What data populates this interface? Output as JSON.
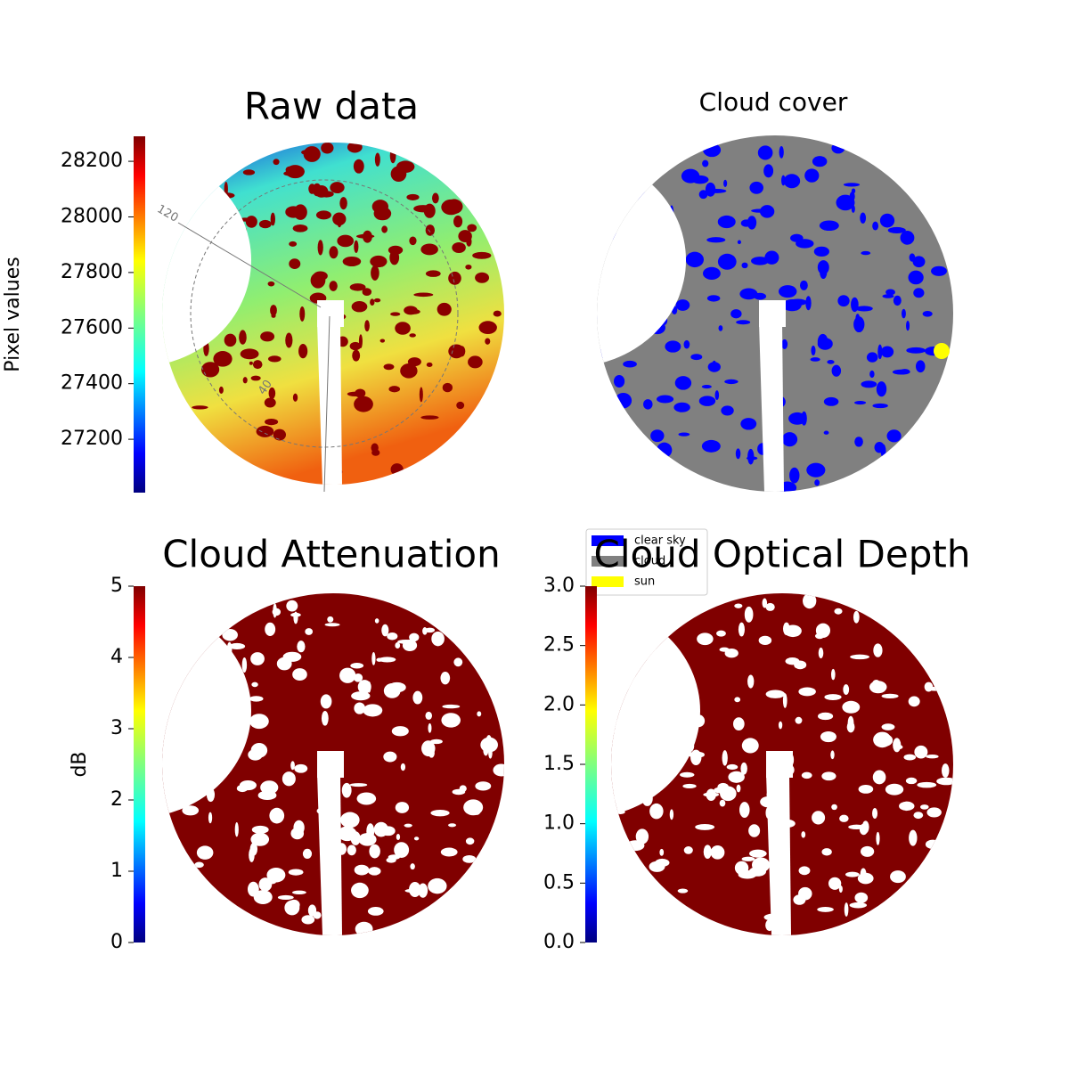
{
  "chart_data": [
    {
      "type": "image",
      "title": "Raw data",
      "colormap": "jet",
      "clim": [
        27008,
        28290
      ],
      "cticks": [
        27200,
        27400,
        27600,
        27800,
        28000,
        28200
      ],
      "clabel": "Pixel values",
      "annotations": [
        "120",
        "40"
      ]
    },
    {
      "type": "image",
      "title": "Cloud cover",
      "series": [
        {
          "name": "clear sky",
          "color": "#0000ff"
        },
        {
          "name": "cloud",
          "color": "#808080"
        },
        {
          "name": "sun",
          "color": "#ffff00"
        }
      ]
    },
    {
      "type": "image",
      "title": "Cloud Attenuation",
      "colormap": "jet",
      "clim": [
        0,
        5
      ],
      "cticks": [
        0,
        1,
        2,
        3,
        4,
        5
      ],
      "clabel": "dB"
    },
    {
      "type": "image",
      "title": "Cloud Optical Depth",
      "colormap": "jet",
      "clim": [
        0,
        3
      ],
      "cticks": [
        {
          "value": 0,
          "label": "0.0"
        },
        {
          "value": 0.5,
          "label": "0.5"
        },
        {
          "value": 1,
          "label": "1.0"
        },
        {
          "value": 1.5,
          "label": "1.5"
        },
        {
          "value": 2,
          "label": "2.0"
        },
        {
          "value": 2.5,
          "label": "2.5"
        },
        {
          "value": 3,
          "label": "3.0"
        }
      ]
    }
  ]
}
